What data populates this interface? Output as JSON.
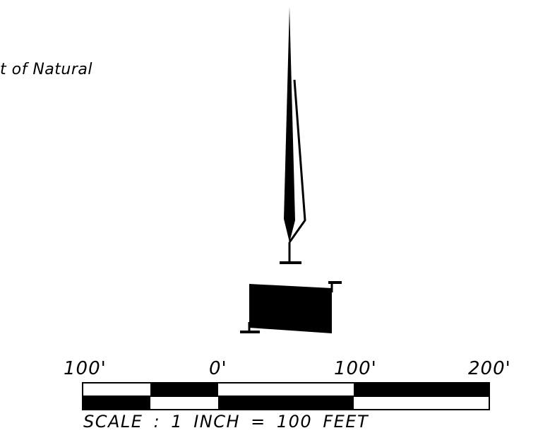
{
  "header": {
    "text": "t of Natural"
  },
  "north_arrow": {
    "icon": "north-arrow-icon",
    "letter_icon": "north-letter-icon"
  },
  "scale": {
    "labels": [
      "100'",
      "0'",
      "100'",
      "200'"
    ],
    "caption": "SCALE : 1 INCH = 100 FEET"
  },
  "colors": {
    "ink": "#000000",
    "paper": "#ffffff"
  }
}
